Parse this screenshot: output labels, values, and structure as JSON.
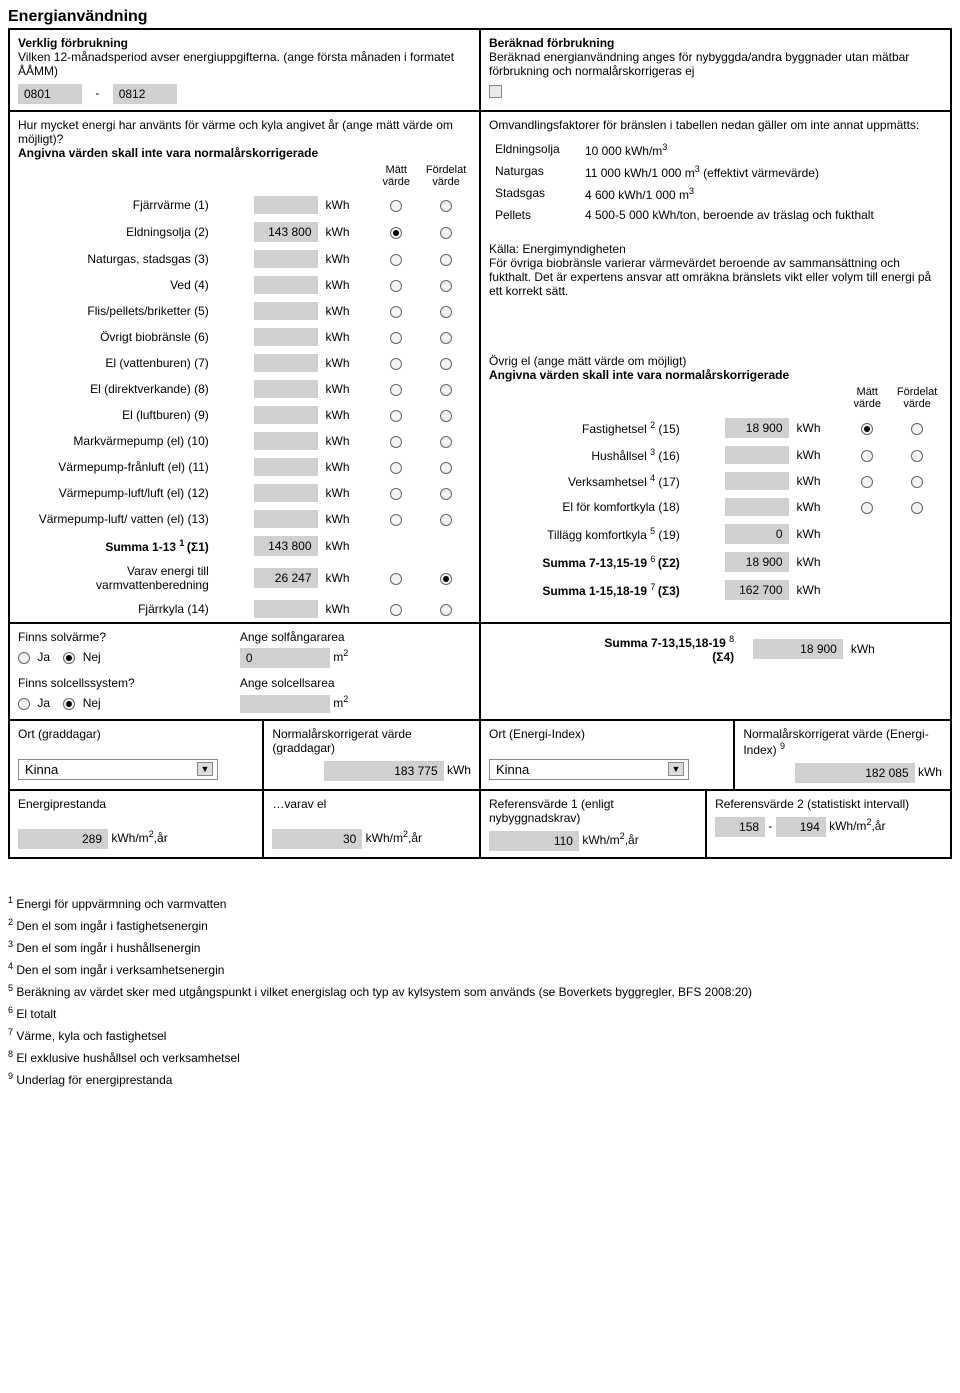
{
  "title": "Energianvändning",
  "verklig": {
    "heading": "Verklig förbrukning",
    "subtext": "Vilken 12-månadsperiod avser energiuppgifterna. (ange första månaden i formatet ÅÅMM)",
    "period_from": "0801",
    "dash": "-",
    "period_to": "0812"
  },
  "beraknad": {
    "heading": "Beräknad förbrukning",
    "subtext": "Beräknad energianvändning anges för nybyggda/andra byggnader utan mätbar förbrukning och normalårskorrigeras ej"
  },
  "left_intro": {
    "q": "Hur mycket energi har använts för värme och kyla angivet år (ange mätt värde om möjligt)?",
    "note": "Angivna värden skall inte vara normalårskorrigerade",
    "col1": "Mätt värde",
    "col2": "Fördelat värde"
  },
  "conv": {
    "intro": "Omvandlingsfaktorer för bränslen i tabellen nedan gäller om inte annat uppmätts:",
    "rows": [
      {
        "k": "Eldningsolja",
        "v": "10 000 kWh/m"
      },
      {
        "k": "Naturgas",
        "v": "11 000 kWh/1 000 m",
        "suffix": " (effektivt värmevärde)"
      },
      {
        "k": "Stadsgas",
        "v": "4 600 kWh/1 000 m"
      },
      {
        "k": "Pellets",
        "v": "4 500-5 000 kWh/ton, beroende av träslag och fukthalt"
      }
    ],
    "src_head": "Källa: Energimyndigheten",
    "src_text": "För övriga biobränsle varierar värmevärdet beroende av sammansättning och fukthalt. Det är expertens ansvar att omräkna bränslets vikt eller volym till energi på ett korrekt sätt."
  },
  "unit_kwh": "kWh",
  "energy_rows": [
    {
      "label": "Fjärrvärme (1)",
      "value": "",
      "sel": null
    },
    {
      "label": "Eldningsolja (2)",
      "value": "143 800",
      "sel": 0
    },
    {
      "label": "Naturgas, stadsgas (3)",
      "value": "",
      "sel": null
    },
    {
      "label": "Ved (4)",
      "value": "",
      "sel": null
    },
    {
      "label": "Flis/pellets/briketter (5)",
      "value": "",
      "sel": null
    },
    {
      "label": "Övrigt biobränsle (6)",
      "value": "",
      "sel": null
    },
    {
      "label": "El (vattenburen) (7)",
      "value": "",
      "sel": null
    },
    {
      "label": "El (direktverkande) (8)",
      "value": "",
      "sel": null
    },
    {
      "label": "El (luftburen) (9)",
      "value": "",
      "sel": null
    },
    {
      "label": "Markvärmepump (el) (10)",
      "value": "",
      "sel": null
    },
    {
      "label": "Värmepump-frånluft (el) (11)",
      "value": "",
      "sel": null
    },
    {
      "label": "Värmepump-luft/luft (el) (12)",
      "value": "",
      "sel": null
    },
    {
      "label": "Värmepump-luft/ vatten (el) (13)",
      "value": "",
      "sel": null
    }
  ],
  "summa1_label": "Summa 1-13 ",
  "summa1_sigma": "(Σ1)",
  "summa1_value": "143 800",
  "varav_label": "Varav energi till varmvattenberedning",
  "varav_value": "26 247",
  "fjarrkyla_label": "Fjärrkyla (14)",
  "fjarrkyla_value": "",
  "solvarm": {
    "q": "Finns solvärme?",
    "ja": "Ja",
    "nej": "Nej",
    "area_lbl": "Ange solfångararea",
    "area_val": "0",
    "area_unit": "m"
  },
  "solcell": {
    "q": "Finns solcellssystem?",
    "ja": "Ja",
    "nej": "Nej",
    "area_lbl": "Ange solcellsarea",
    "area_val": "",
    "area_unit": "m"
  },
  "ovrig_el": {
    "heading": "Övrig el (ange mätt värde om möjligt)",
    "note": "Angivna värden skall inte vara normalårskorrigerade",
    "col1": "Mätt värde",
    "col2": "Fördelat värde",
    "rows": [
      {
        "label": "Fastighetsel ",
        "sup": "2",
        "post": " (15)",
        "value": "18 900",
        "sel": 0
      },
      {
        "label": "Hushållsel ",
        "sup": "3",
        "post": " (16)",
        "value": "",
        "sel": null
      },
      {
        "label": "Verksamhetsel ",
        "sup": "4",
        "post": " (17)",
        "value": "",
        "sel": null
      },
      {
        "label": "El för komfortkyla (18)",
        "sup": "",
        "post": "",
        "value": "",
        "sel": null
      }
    ],
    "tillagg_label": "Tillägg komfortkyla ",
    "tillagg_sup": "5",
    "tillagg_post": "(19)",
    "tillagg_value": "0",
    "s2_label": "Summa 7-13,15-19 ",
    "s2_sup": "6",
    "s2_sigma": "(Σ2)",
    "s2_value": "18 900",
    "s3_label": "Summa 1-15,18-19 ",
    "s3_sup": "7",
    "s3_sigma": "(Σ3)",
    "s3_value": "162 700",
    "s4_label": "Summa 7-13,15,18-19 ",
    "s4_sup": "8",
    "s4_sigma": "(Σ4)",
    "s4_value": "18 900"
  },
  "bottom": {
    "ort_dd_lbl": "Ort (graddagar)",
    "norm_dd_lbl": "Normalårskorrigerat värde (graddagar)",
    "ort_ei_lbl": "Ort (Energi-Index)",
    "norm_ei_lbl": "Normalårskorrigerat värde (Energi-Index) ",
    "norm_ei_sup": "9",
    "place": "Kinna",
    "norm_dd_val": "183 775",
    "norm_ei_val": "182 085",
    "ep_lbl": "Energiprestanda",
    "varav_el_lbl": "…varav el",
    "ref1_lbl": "Referensvärde 1 (enligt nybyggnadskrav)",
    "ref2_lbl": "Referensvärde 2 (statistiskt intervall)",
    "ep_val": "289",
    "varav_el_val": "30",
    "ref1_val": "110",
    "ref2_from": "158",
    "ref2_to": "194",
    "unit_kwhm2": "kWh/m",
    "unit_yr": ",år"
  },
  "footnotes": [
    "Energi för uppvärmning och varmvatten",
    "Den el som ingår i fastighetsenergin",
    "Den el som ingår i hushållsenergin",
    "Den el som ingår i verksamhetsenergin",
    "Beräkning av värdet sker med utgångspunkt i vilket energislag och typ av kylsystem som används (se Boverkets byggregler, BFS 2008:20)",
    "El totalt",
    "Värme, kyla och fastighetsel",
    "El exklusive hushållsel och verksamhetsel",
    "Underlag för energiprestanda"
  ]
}
